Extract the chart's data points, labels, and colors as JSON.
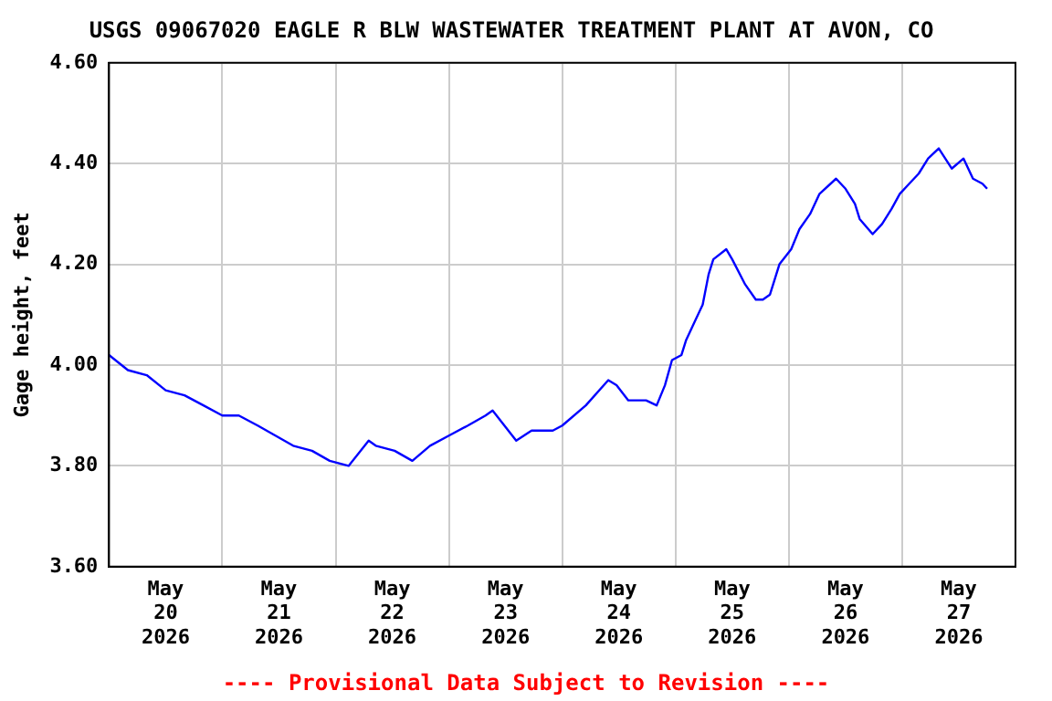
{
  "chart_data": {
    "type": "line",
    "title": "USGS 09067020 EAGLE R BLW WASTEWATER TREATMENT PLANT AT AVON, CO",
    "ylabel": "Gage height, feet",
    "annotations": [
      "---- Provisional Data Subject to Revision ----"
    ],
    "x": [
      "2026-05-20T00:00",
      "2026-05-20T04:00",
      "2026-05-20T08:00",
      "2026-05-20T12:00",
      "2026-05-20T16:00",
      "2026-05-20T20:00",
      "2026-05-21T00:00",
      "2026-05-21T03:30",
      "2026-05-21T07:30",
      "2026-05-21T11:15",
      "2026-05-21T15:00",
      "2026-05-21T19:00",
      "2026-05-21T22:45",
      "2026-05-22T02:45",
      "2026-05-22T07:00",
      "2026-05-22T08:30",
      "2026-05-22T12:30",
      "2026-05-22T16:15",
      "2026-05-22T20:00",
      "2026-05-23T00:00",
      "2026-05-23T04:00",
      "2026-05-23T07:45",
      "2026-05-23T09:15",
      "2026-05-23T14:15",
      "2026-05-23T17:30",
      "2026-05-23T22:00",
      "2026-05-24T00:00",
      "2026-05-24T05:00",
      "2026-05-24T09:45",
      "2026-05-24T11:30",
      "2026-05-24T14:00",
      "2026-05-24T17:45",
      "2026-05-24T20:00",
      "2026-05-24T21:45",
      "2026-05-24T23:15",
      "2026-05-25T01:15",
      "2026-05-25T02:15",
      "2026-05-25T04:15",
      "2026-05-25T05:45",
      "2026-05-25T07:00",
      "2026-05-25T08:00",
      "2026-05-25T10:45",
      "2026-05-25T12:00",
      "2026-05-25T14:45",
      "2026-05-25T17:00",
      "2026-05-25T18:30",
      "2026-05-25T20:00",
      "2026-05-25T22:00",
      "2026-05-26T00:30",
      "2026-05-26T02:15",
      "2026-05-26T04:30",
      "2026-05-26T06:30",
      "2026-05-26T10:00",
      "2026-05-26T12:00",
      "2026-05-26T14:00",
      "2026-05-26T15:00",
      "2026-05-26T17:45",
      "2026-05-26T19:45",
      "2026-05-26T21:45",
      "2026-05-26T23:30",
      "2026-05-27T01:30",
      "2026-05-27T03:30",
      "2026-05-27T05:30",
      "2026-05-27T07:45",
      "2026-05-27T10:30",
      "2026-05-27T13:00",
      "2026-05-27T15:00",
      "2026-05-27T17:00",
      "2026-05-27T18:00"
    ],
    "series": [
      {
        "color": "#0000ff",
        "values": [
          4.02,
          3.99,
          3.98,
          3.95,
          3.94,
          3.92,
          3.9,
          3.9,
          3.88,
          3.86,
          3.84,
          3.83,
          3.81,
          3.8,
          3.85,
          3.84,
          3.83,
          3.81,
          3.84,
          3.86,
          3.88,
          3.9,
          3.91,
          3.85,
          3.87,
          3.87,
          3.88,
          3.92,
          3.97,
          3.96,
          3.93,
          3.93,
          3.92,
          3.96,
          4.01,
          4.02,
          4.05,
          4.09,
          4.12,
          4.18,
          4.21,
          4.23,
          4.21,
          4.16,
          4.13,
          4.13,
          4.14,
          4.2,
          4.23,
          4.27,
          4.3,
          4.34,
          4.37,
          4.35,
          4.32,
          4.29,
          4.26,
          4.28,
          4.31,
          4.34,
          4.36,
          4.38,
          4.41,
          4.43,
          4.39,
          4.41,
          4.37,
          4.36,
          4.35
        ]
      }
    ],
    "xlim": [
      "2026-05-20T00:00",
      "2026-05-28T00:00"
    ],
    "xticks": [
      {
        "value": "2026-05-20T00:00",
        "label": null
      },
      {
        "value": "2026-05-20T12:00",
        "label": "May\n20\n2026"
      },
      {
        "value": "2026-05-21T00:00",
        "label": null
      },
      {
        "value": "2026-05-21T12:00",
        "label": "May\n21\n2026"
      },
      {
        "value": "2026-05-22T00:00",
        "label": null
      },
      {
        "value": "2026-05-22T12:00",
        "label": "May\n22\n2026"
      },
      {
        "value": "2026-05-23T00:00",
        "label": null
      },
      {
        "value": "2026-05-23T12:00",
        "label": "May\n23\n2026"
      },
      {
        "value": "2026-05-24T00:00",
        "label": null
      },
      {
        "value": "2026-05-24T12:00",
        "label": "May\n24\n2026"
      },
      {
        "value": "2026-05-25T00:00",
        "label": null
      },
      {
        "value": "2026-05-25T12:00",
        "label": "May\n25\n2026"
      },
      {
        "value": "2026-05-26T00:00",
        "label": null
      },
      {
        "value": "2026-05-26T12:00",
        "label": "May\n26\n2026"
      },
      {
        "value": "2026-05-27T00:00",
        "label": null
      },
      {
        "value": "2026-05-27T12:00",
        "label": "May\n27\n2026"
      },
      {
        "value": "2026-05-28T00:00",
        "label": null
      }
    ],
    "ylim": [
      3.6,
      4.6
    ],
    "yticks": [
      {
        "value": 3.6,
        "label": "3.60"
      },
      {
        "value": 3.8,
        "label": "3.80"
      },
      {
        "value": 4.0,
        "label": "4.00"
      },
      {
        "value": 4.2,
        "label": "4.20"
      },
      {
        "value": 4.4,
        "label": "4.40"
      },
      {
        "value": 4.6,
        "label": "4.60"
      }
    ],
    "grid": true,
    "legend": false,
    "marker": "none",
    "line_style": "solid"
  }
}
